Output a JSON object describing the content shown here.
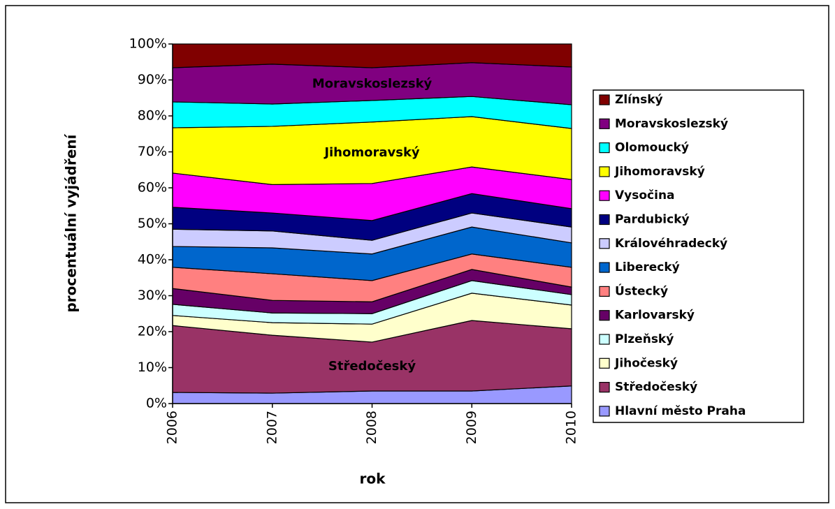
{
  "chart_data": {
    "type": "stacked_area_100",
    "x_label": "rok",
    "y_label": "procentuální vyjádření",
    "categories": [
      "2006",
      "2007",
      "2008",
      "2009",
      "2010"
    ],
    "ylim": [
      0,
      100
    ],
    "yticks": [
      {
        "value": 0,
        "label": "0%"
      },
      {
        "value": 10,
        "label": "10%"
      },
      {
        "value": 20,
        "label": "20%"
      },
      {
        "value": 30,
        "label": "30%"
      },
      {
        "value": 40,
        "label": "40%"
      },
      {
        "value": 50,
        "label": "50%"
      },
      {
        "value": 60,
        "label": "60%"
      },
      {
        "value": 70,
        "label": "70%"
      },
      {
        "value": 80,
        "label": "80%"
      },
      {
        "value": 90,
        "label": "90%"
      },
      {
        "value": 100,
        "label": "100%"
      }
    ],
    "annotations": [
      "Moravskoslezský",
      "Jihomoravský",
      "Středočeský"
    ],
    "legend": "right",
    "series": [
      {
        "name": "Hlavní město Praha",
        "color": "#9999ff",
        "values": [
          3.1,
          2.9,
          3.5,
          3.5,
          4.9
        ]
      },
      {
        "name": "Středočeský",
        "color": "#993366",
        "values": [
          18.6,
          16.1,
          13.6,
          19.6,
          15.9
        ]
      },
      {
        "name": "Jihočeský",
        "color": "#ffffcc",
        "values": [
          2.8,
          3.5,
          5.0,
          7.6,
          6.6
        ]
      },
      {
        "name": "Plzeňský",
        "color": "#ccffff",
        "values": [
          3.1,
          2.7,
          2.9,
          3.5,
          2.9
        ]
      },
      {
        "name": "Karlovarský",
        "color": "#660066",
        "values": [
          4.4,
          3.5,
          3.3,
          3.1,
          2.1
        ]
      },
      {
        "name": "Ústecký",
        "color": "#ff8080",
        "values": [
          5.9,
          7.4,
          5.9,
          4.3,
          5.5
        ]
      },
      {
        "name": "Liberecký",
        "color": "#0066cc",
        "values": [
          5.8,
          7.2,
          7.4,
          7.5,
          6.8
        ]
      },
      {
        "name": "Královéhradecký",
        "color": "#ccccff",
        "values": [
          4.8,
          4.7,
          3.8,
          3.9,
          4.4
        ]
      },
      {
        "name": "Pardubický",
        "color": "#000080",
        "values": [
          6.1,
          5.0,
          5.5,
          5.4,
          5.1
        ]
      },
      {
        "name": "Vysočina",
        "color": "#ff00ff",
        "values": [
          9.5,
          7.9,
          10.3,
          7.4,
          8.1
        ]
      },
      {
        "name": "Jihomoravský",
        "color": "#ffff00",
        "values": [
          12.6,
          16.2,
          17.1,
          14.0,
          14.2
        ]
      },
      {
        "name": "Olomoucký",
        "color": "#00ffff",
        "values": [
          7.2,
          6.2,
          6.0,
          5.6,
          6.6
        ]
      },
      {
        "name": "Moravskoslezský",
        "color": "#800080",
        "values": [
          9.5,
          11.1,
          9.1,
          9.4,
          10.5
        ]
      },
      {
        "name": "Zlínský",
        "color": "#800000",
        "values": [
          6.6,
          5.6,
          6.6,
          5.2,
          6.4
        ]
      }
    ]
  }
}
